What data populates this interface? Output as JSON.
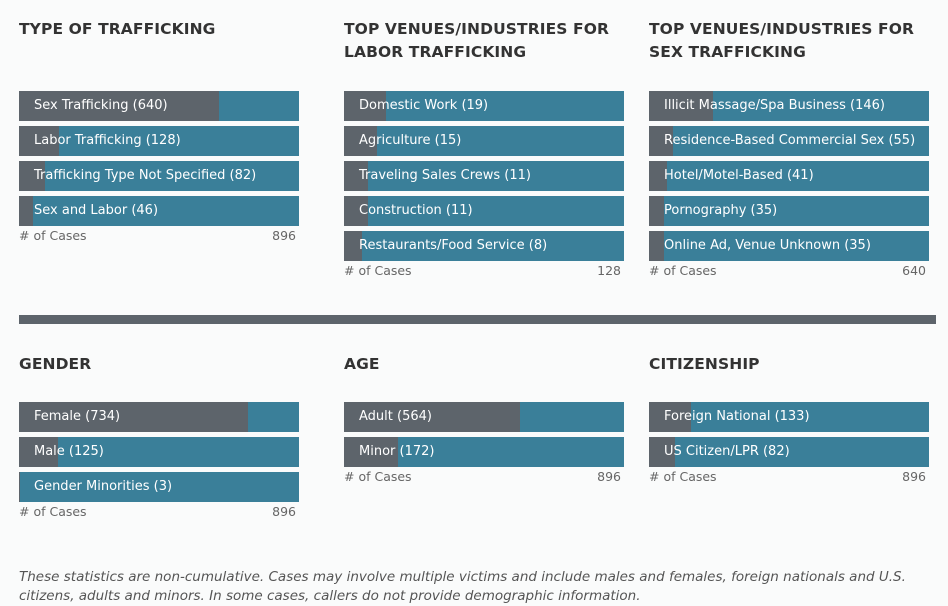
{
  "panels": [
    {
      "title": "TYPE OF TRAFFICKING",
      "axis_label": "# of Cases",
      "axis_max_label": "896"
    },
    {
      "title": "TOP VENUES/INDUSTRIES FOR LABOR TRAFFICKING",
      "axis_label": "# of Cases",
      "axis_max_label": "128"
    },
    {
      "title": "TOP VENUES/INDUSTRIES FOR SEX TRAFFICKING",
      "axis_label": "# of Cases",
      "axis_max_label": "640"
    },
    {
      "title": "GENDER",
      "axis_label": "# of Cases",
      "axis_max_label": "896"
    },
    {
      "title": "AGE",
      "axis_label": "# of Cases",
      "axis_max_label": "896"
    },
    {
      "title": "CITIZENSHIP",
      "axis_label": "# of Cases",
      "axis_max_label": "896"
    }
  ],
  "chart_data": [
    {
      "type": "bar",
      "title": "TYPE OF TRAFFICKING",
      "xlabel": "# of Cases",
      "xlim": [
        0,
        896
      ],
      "categories": [
        "Sex Trafficking (640)",
        "Labor Trafficking (128)",
        "Trafficking Type Not Specified (82)",
        "Sex and Labor (46)"
      ],
      "values": [
        640,
        128,
        82,
        46
      ]
    },
    {
      "type": "bar",
      "title": "TOP VENUES/INDUSTRIES FOR LABOR TRAFFICKING",
      "xlabel": "# of Cases",
      "xlim": [
        0,
        128
      ],
      "categories": [
        "Domestic Work (19)",
        "Agriculture (15)",
        "Traveling Sales Crews (11)",
        "Construction (11)",
        "Restaurants/Food Service (8)"
      ],
      "values": [
        19,
        15,
        11,
        11,
        8
      ]
    },
    {
      "type": "bar",
      "title": "TOP VENUES/INDUSTRIES FOR SEX TRAFFICKING",
      "xlabel": "# of Cases",
      "xlim": [
        0,
        640
      ],
      "categories": [
        "Illicit Massage/Spa Business (146)",
        "Residence-Based Commercial Sex (55)",
        "Hotel/Motel-Based (41)",
        "Pornography (35)",
        "Online Ad, Venue Unknown (35)"
      ],
      "values": [
        146,
        55,
        41,
        35,
        35
      ]
    },
    {
      "type": "bar",
      "title": "GENDER",
      "xlabel": "# of Cases",
      "xlim": [
        0,
        896
      ],
      "categories": [
        "Female (734)",
        "Male (125)",
        "Gender Minorities (3)"
      ],
      "values": [
        734,
        125,
        3
      ]
    },
    {
      "type": "bar",
      "title": "AGE",
      "xlabel": "# of Cases",
      "xlim": [
        0,
        896
      ],
      "categories": [
        "Adult (564)",
        "Minor (172)"
      ],
      "values": [
        564,
        172
      ]
    },
    {
      "type": "bar",
      "title": "CITIZENSHIP",
      "xlabel": "# of Cases",
      "xlim": [
        0,
        896
      ],
      "categories": [
        "Foreign National (133)",
        "US Citizen/LPR (82)"
      ],
      "values": [
        133,
        82
      ]
    }
  ],
  "colors": {
    "fill": "#5d646b",
    "track": "#3a7f99",
    "divider": "#5d646b"
  },
  "footnote": "These statistics are non-cumulative. Cases may involve multiple victims and include males and females, foreign nationals and U.S. citizens, adults and minors. In some cases, callers do not provide demographic information."
}
